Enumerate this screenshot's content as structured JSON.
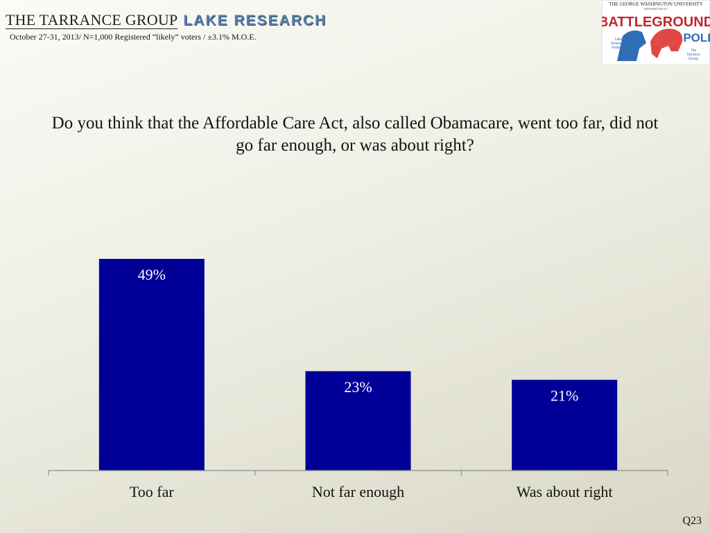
{
  "header": {
    "brand_left": "THE TARRANCE GROUP",
    "brand_right": "LAKE RESEARCH",
    "subtitle": "October 27-31, 2013/ N=1,000 Registered “likely” voters / ±3.1% M.O.E."
  },
  "logo": {
    "top_line": "THE GEORGE WASHINGTON UNIVERSITY",
    "location": "WASHINGTON DC",
    "word1": "BATTLEGROUND",
    "word2": "POLL",
    "left_partner": [
      "Lake",
      "Research",
      "Partners"
    ],
    "right_partner": [
      "The",
      "Tarrance",
      "Group"
    ]
  },
  "question_number": "Q23",
  "chart_data": {
    "type": "bar",
    "title": "Do you think that the Affordable Care Act, also called Obamacare, went too far, did not go far enough, or was about right?",
    "categories": [
      "Too far",
      "Not far enough",
      "Was about right"
    ],
    "values": [
      49,
      23,
      21
    ],
    "labels": [
      "49%",
      "23%",
      "21%"
    ],
    "xlabel": "",
    "ylabel": "",
    "ylim": [
      0,
      60
    ],
    "grid": false,
    "color": "#000099"
  }
}
